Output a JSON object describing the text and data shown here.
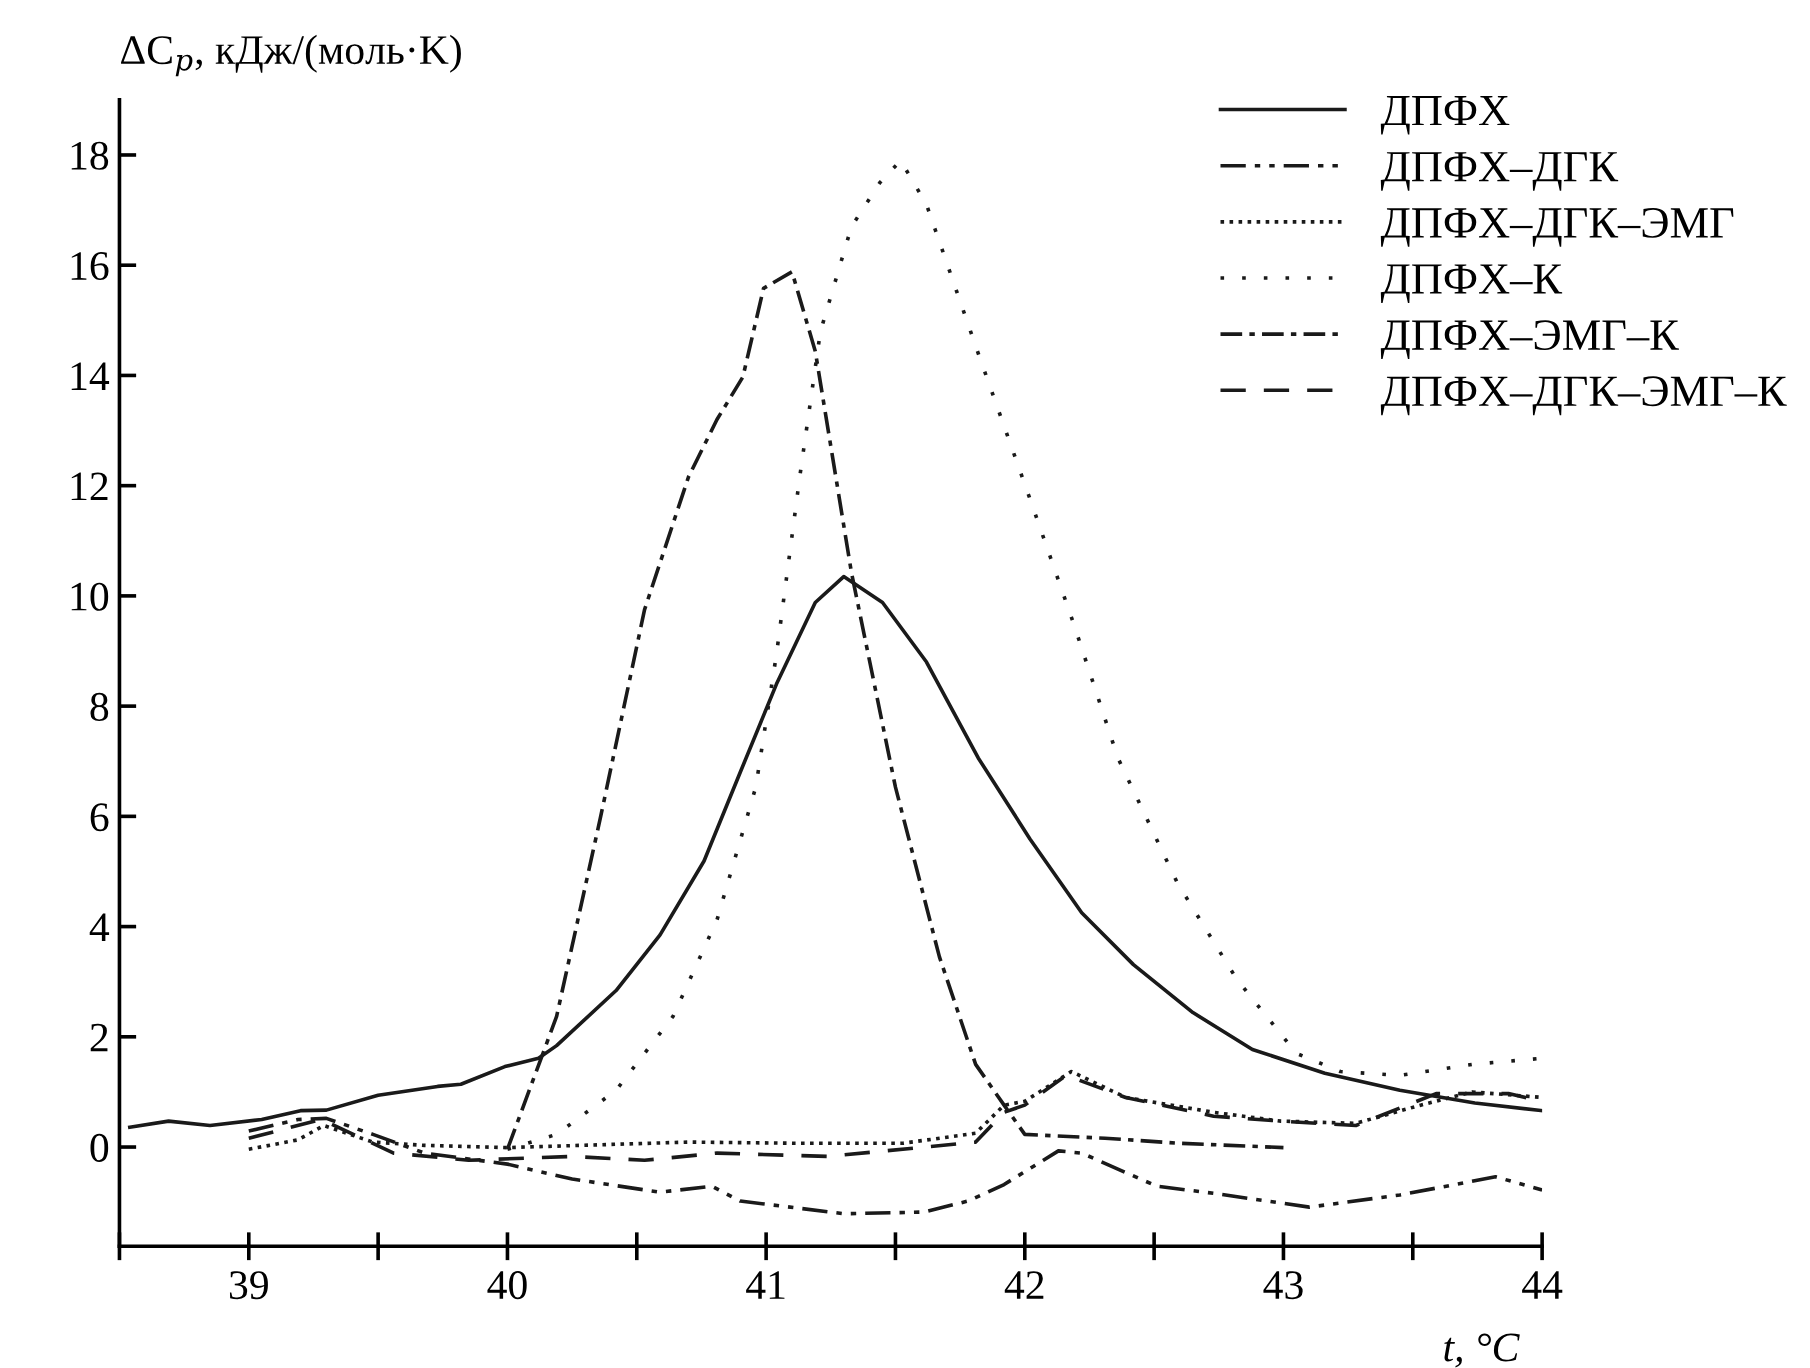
{
  "chart_data": {
    "type": "line",
    "ylabel": "ΔC$_{p}$, кДж/(моль·K)",
    "xlabel": "t, °C",
    "xlim": [
      38.5,
      44
    ],
    "ylim": [
      -1.8,
      19
    ],
    "xticks": [
      {
        "value": 38.5,
        "label": null
      },
      39,
      {
        "value": 39.5,
        "label": null
      },
      40,
      {
        "value": 40.5,
        "label": null
      },
      41,
      {
        "value": 41.5,
        "label": null
      },
      42,
      {
        "value": 42.5,
        "label": null
      },
      43,
      {
        "value": 43.5,
        "label": null
      },
      44
    ],
    "yticks": [
      0,
      2,
      4,
      6,
      8,
      10,
      12,
      14,
      16,
      18
    ],
    "grid": false,
    "legend": "top right",
    "series": [
      {
        "name": "ДПФХ",
        "color": "#1a1a1a",
        "line_style": "solid",
        "x": [
          38.54,
          38.69,
          38.85,
          39.05,
          39.2,
          39.3,
          39.5,
          39.73,
          39.82,
          39.99,
          40.12,
          40.19,
          40.42,
          40.59,
          40.76,
          40.9,
          41.04,
          41.19,
          41.3,
          41.45,
          41.62,
          41.82,
          42.02,
          42.22,
          42.42,
          42.65,
          42.88,
          43.16,
          43.45,
          43.74,
          44
        ],
        "values": [
          0.36,
          0.47,
          0.39,
          0.5,
          0.66,
          0.67,
          0.94,
          1.1,
          1.14,
          1.46,
          1.61,
          1.84,
          2.84,
          3.85,
          5.19,
          6.8,
          8.4,
          9.88,
          10.35,
          9.88,
          8.8,
          7.06,
          5.59,
          4.25,
          3.31,
          2.44,
          1.77,
          1.34,
          1.03,
          0.8,
          0.66
        ]
      },
      {
        "name": "ДПФХ–ДГК",
        "color": "#1a1a1a",
        "line_style": "dashdotdot",
        "x": [
          39,
          39.19,
          39.3,
          39.48,
          39.68,
          40,
          40.25,
          40.59,
          40.79,
          40.9,
          41.3,
          41.61,
          41.78,
          41.92,
          42.13,
          42.22,
          42.51,
          42.73,
          43.1,
          43.45,
          43.82,
          44
        ],
        "values": [
          0.29,
          0.5,
          0.52,
          0.23,
          -0.11,
          -0.31,
          -0.58,
          -0.82,
          -0.71,
          -0.98,
          -1.21,
          -1.18,
          -0.98,
          -0.68,
          -0.07,
          -0.11,
          -0.71,
          -0.84,
          -1.09,
          -0.87,
          -0.54,
          -0.78
        ]
      },
      {
        "name": "ДПФХ–ДГК–ЭМГ",
        "color": "#1a1a1a",
        "line_style": "dense_dotted",
        "x": [
          39,
          39.19,
          39.29,
          39.48,
          39.68,
          40,
          40.7,
          41.1,
          41.53,
          41.81,
          41.92,
          42,
          42.18,
          42.39,
          42.73,
          42.99,
          43.28,
          43.53,
          43.73,
          44
        ],
        "values": [
          -0.04,
          0.13,
          0.39,
          0.09,
          0.03,
          -0.01,
          0.09,
          0.07,
          0.07,
          0.25,
          0.76,
          0.83,
          1.37,
          0.9,
          0.63,
          0.47,
          0.43,
          0.76,
          1.0,
          0.9
        ]
      },
      {
        "name": "ДПФХ–К",
        "color": "#1a1a1a",
        "line_style": "dotted",
        "x": [
          40,
          40.19,
          40.42,
          40.64,
          40.81,
          40.96,
          41.04,
          41.13,
          41.21,
          41.33,
          41.44,
          41.52,
          41.62,
          41.82,
          42.02,
          42.19,
          42.36,
          42.59,
          42.82,
          43.05,
          43.22,
          43.45,
          43.73,
          44
        ],
        "values": [
          -0.04,
          0.23,
          1.03,
          2.37,
          4.12,
          6.53,
          8.94,
          12.16,
          14.8,
          16.7,
          17.5,
          17.9,
          17.1,
          14.4,
          11.76,
          9.48,
          7.06,
          4.79,
          3.04,
          1.7,
          1.37,
          1.3,
          1.5,
          1.61
        ]
      },
      {
        "name": "ДПФХ–ЭМГ–К",
        "color": "#1a1a1a",
        "line_style": "dashdot",
        "x": [
          40,
          40.19,
          40.36,
          40.53,
          40.7,
          40.81,
          40.91,
          40.99,
          41.1,
          41.19,
          41.33,
          41.5,
          41.67,
          41.81,
          41.92,
          42,
          42.31,
          42.59,
          43
        ],
        "values": [
          -0.04,
          2.37,
          5.99,
          9.75,
          12.16,
          13.2,
          13.97,
          15.58,
          15.88,
          14.44,
          10.42,
          6.53,
          3.45,
          1.5,
          0.76,
          0.23,
          0.16,
          0.07,
          -0.01
        ]
      },
      {
        "name": "ДПФХ–ДГК–ЭМГ–К",
        "color": "#1a1a1a",
        "line_style": "dashed",
        "x": [
          39,
          39.28,
          39.56,
          39.85,
          40.25,
          40.53,
          40.81,
          41.24,
          41.81,
          41.92,
          42,
          42.16,
          42.39,
          42.73,
          42.99,
          43.28,
          43.59,
          43.87,
          44
        ],
        "values": [
          0.16,
          0.5,
          -0.11,
          -0.24,
          -0.17,
          -0.24,
          -0.11,
          -0.17,
          0.09,
          0.63,
          0.76,
          1.3,
          0.9,
          0.56,
          0.47,
          0.39,
          0.97,
          0.97,
          0.83
        ]
      }
    ]
  }
}
